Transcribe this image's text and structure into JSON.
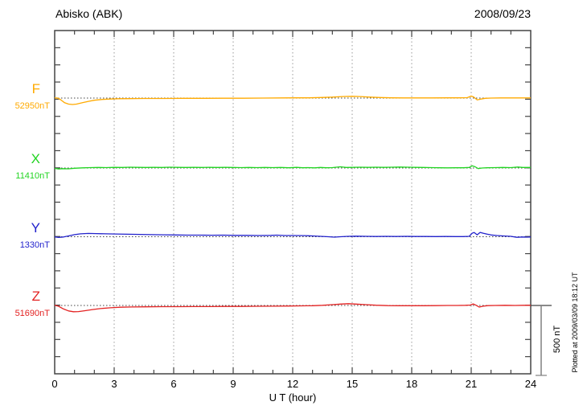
{
  "chart_data": {
    "type": "line",
    "title": "Abisko (ABK)",
    "date": "2008/09/23",
    "xlabel": "U T (hour)",
    "x_range": [
      0,
      24
    ],
    "x_tick_hours": [
      0,
      3,
      6,
      9,
      12,
      15,
      18,
      21,
      24
    ],
    "x_tick_labels": [
      "0",
      "3",
      "6",
      "9",
      "12",
      "15",
      "18",
      "21",
      "24"
    ],
    "x_minor_tick_step_hours": 1,
    "grid": {
      "vertical_dotted_at_hours": [
        3,
        6,
        9,
        12,
        15,
        18,
        21
      ],
      "horizontal_dotted_baselines": true
    },
    "legend_position": "left-of-traces",
    "scale": {
      "label": "500 nT",
      "nT": 500
    },
    "plotted_note": "Plotted at 2009/03/09 18:12 UT",
    "frame_color": "#444444",
    "grid_color": "#999999",
    "baseline_color": "#444444",
    "scalebar_color": "#808080",
    "series": [
      {
        "name": "F",
        "baseline_label": "52950nT",
        "baseline_nT": 52950,
        "color": "#FFAA00",
        "points_hour_dnT": [
          [
            0,
            2
          ],
          [
            0.15,
            0
          ],
          [
            0.3,
            -12
          ],
          [
            0.5,
            -34
          ],
          [
            0.7,
            -44
          ],
          [
            0.9,
            -47
          ],
          [
            1.1,
            -44
          ],
          [
            1.4,
            -34
          ],
          [
            1.7,
            -24
          ],
          [
            2.0,
            -16
          ],
          [
            2.4,
            -10
          ],
          [
            2.8,
            -7
          ],
          [
            3.2,
            -5
          ],
          [
            3.8,
            -4
          ],
          [
            4.5,
            -3
          ],
          [
            5.5,
            -3
          ],
          [
            6.5,
            -2
          ],
          [
            7.5,
            -2
          ],
          [
            8.5,
            -1
          ],
          [
            9.5,
            -1
          ],
          [
            10.5,
            0
          ],
          [
            11.5,
            1
          ],
          [
            12.2,
            2
          ],
          [
            12.8,
            2
          ],
          [
            13.4,
            4
          ],
          [
            14.0,
            7
          ],
          [
            14.5,
            11
          ],
          [
            15.0,
            13
          ],
          [
            15.4,
            11
          ],
          [
            15.9,
            7
          ],
          [
            16.4,
            4
          ],
          [
            17.0,
            2
          ],
          [
            17.6,
            1
          ],
          [
            18.2,
            1
          ],
          [
            19.0,
            1
          ],
          [
            19.8,
            2
          ],
          [
            20.4,
            2
          ],
          [
            20.8,
            3
          ],
          [
            21.0,
            15
          ],
          [
            21.12,
            8
          ],
          [
            21.3,
            -13
          ],
          [
            21.5,
            -7
          ],
          [
            21.7,
            -2
          ],
          [
            22.0,
            0
          ],
          [
            22.5,
            1
          ],
          [
            23.0,
            1
          ],
          [
            23.5,
            1
          ],
          [
            24,
            1
          ]
        ]
      },
      {
        "name": "X",
        "baseline_label": "11410nT",
        "baseline_nT": 11410,
        "color": "#22D422",
        "points_hour_dnT": [
          [
            0,
            -3
          ],
          [
            0.2,
            -7
          ],
          [
            0.4,
            -5
          ],
          [
            0.7,
            -6
          ],
          [
            1.0,
            -2
          ],
          [
            1.4,
            1
          ],
          [
            1.8,
            3
          ],
          [
            2.2,
            4
          ],
          [
            2.6,
            3
          ],
          [
            3.0,
            5
          ],
          [
            3.4,
            4
          ],
          [
            3.8,
            6
          ],
          [
            4.2,
            5
          ],
          [
            4.6,
            4
          ],
          [
            5.0,
            5
          ],
          [
            5.4,
            4
          ],
          [
            5.8,
            6
          ],
          [
            6.2,
            5
          ],
          [
            6.6,
            4
          ],
          [
            7.0,
            5
          ],
          [
            7.4,
            4
          ],
          [
            7.8,
            5
          ],
          [
            8.2,
            4
          ],
          [
            8.6,
            5
          ],
          [
            9.0,
            4
          ],
          [
            9.4,
            3
          ],
          [
            9.8,
            4
          ],
          [
            10.2,
            3
          ],
          [
            10.6,
            4
          ],
          [
            11.0,
            3
          ],
          [
            11.4,
            4
          ],
          [
            11.8,
            2
          ],
          [
            12.2,
            5
          ],
          [
            12.5,
            2
          ],
          [
            12.8,
            3
          ],
          [
            13.1,
            1
          ],
          [
            13.4,
            4
          ],
          [
            13.7,
            2
          ],
          [
            14.0,
            3
          ],
          [
            14.4,
            9
          ],
          [
            14.7,
            4
          ],
          [
            15.0,
            5
          ],
          [
            15.4,
            6
          ],
          [
            15.8,
            5
          ],
          [
            16.2,
            6
          ],
          [
            16.6,
            5
          ],
          [
            17.0,
            6
          ],
          [
            17.4,
            7
          ],
          [
            17.8,
            6
          ],
          [
            18.2,
            5
          ],
          [
            18.6,
            4
          ],
          [
            19.0,
            3
          ],
          [
            19.4,
            2
          ],
          [
            19.8,
            1
          ],
          [
            20.2,
            2
          ],
          [
            20.6,
            2
          ],
          [
            20.9,
            4
          ],
          [
            21.05,
            16
          ],
          [
            21.2,
            9
          ],
          [
            21.35,
            -4
          ],
          [
            21.55,
            0
          ],
          [
            21.8,
            2
          ],
          [
            22.2,
            3
          ],
          [
            22.6,
            4
          ],
          [
            23.0,
            3
          ],
          [
            23.35,
            7
          ],
          [
            23.6,
            4
          ],
          [
            24,
            4
          ]
        ]
      },
      {
        "name": "Y",
        "baseline_label": "1330nT",
        "baseline_nT": 1330,
        "color": "#2222CC",
        "points_hour_dnT": [
          [
            0,
            -1
          ],
          [
            0.2,
            -5
          ],
          [
            0.45,
            -2
          ],
          [
            0.7,
            6
          ],
          [
            1.0,
            15
          ],
          [
            1.3,
            21
          ],
          [
            1.7,
            24
          ],
          [
            2.1,
            23
          ],
          [
            2.6,
            21
          ],
          [
            3.1,
            20
          ],
          [
            3.7,
            18
          ],
          [
            4.3,
            17
          ],
          [
            4.9,
            15
          ],
          [
            5.5,
            14
          ],
          [
            6.1,
            13
          ],
          [
            6.7,
            12
          ],
          [
            7.3,
            12
          ],
          [
            7.9,
            11
          ],
          [
            8.5,
            12
          ],
          [
            9.1,
            10
          ],
          [
            9.7,
            10
          ],
          [
            10.3,
            9
          ],
          [
            10.9,
            10
          ],
          [
            11.2,
            12
          ],
          [
            11.6,
            9
          ],
          [
            12.1,
            9
          ],
          [
            12.6,
            8
          ],
          [
            13.0,
            6
          ],
          [
            13.4,
            3
          ],
          [
            13.8,
            0
          ],
          [
            14.1,
            -3
          ],
          [
            14.4,
            0
          ],
          [
            14.8,
            3
          ],
          [
            15.2,
            4
          ],
          [
            15.7,
            3
          ],
          [
            16.2,
            2
          ],
          [
            16.7,
            3
          ],
          [
            17.2,
            2
          ],
          [
            17.7,
            3
          ],
          [
            18.2,
            2
          ],
          [
            18.7,
            2
          ],
          [
            19.2,
            1
          ],
          [
            19.7,
            2
          ],
          [
            20.2,
            1
          ],
          [
            20.6,
            1
          ],
          [
            20.9,
            3
          ],
          [
            21.05,
            26
          ],
          [
            21.15,
            31
          ],
          [
            21.3,
            14
          ],
          [
            21.45,
            32
          ],
          [
            21.6,
            26
          ],
          [
            21.8,
            19
          ],
          [
            22.0,
            13
          ],
          [
            22.3,
            9
          ],
          [
            22.6,
            6
          ],
          [
            23.0,
            3
          ],
          [
            23.3,
            -4
          ],
          [
            23.6,
            -2
          ],
          [
            23.8,
            -3
          ],
          [
            24,
            -2
          ]
        ]
      },
      {
        "name": "Z",
        "baseline_label": "51690nT",
        "baseline_nT": 51690,
        "color": "#E32222",
        "points_hour_dnT": [
          [
            0,
            1
          ],
          [
            0.2,
            -6
          ],
          [
            0.45,
            -26
          ],
          [
            0.7,
            -40
          ],
          [
            0.95,
            -46
          ],
          [
            1.2,
            -45
          ],
          [
            1.5,
            -39
          ],
          [
            1.9,
            -30
          ],
          [
            2.3,
            -23
          ],
          [
            2.8,
            -17
          ],
          [
            3.3,
            -13
          ],
          [
            3.9,
            -11
          ],
          [
            4.6,
            -10
          ],
          [
            5.4,
            -9
          ],
          [
            6.2,
            -9
          ],
          [
            7.0,
            -8
          ],
          [
            7.8,
            -8
          ],
          [
            8.6,
            -7
          ],
          [
            9.4,
            -7
          ],
          [
            10.2,
            -6
          ],
          [
            11.0,
            -5
          ],
          [
            11.8,
            -4
          ],
          [
            12.4,
            -3
          ],
          [
            13.0,
            -2
          ],
          [
            13.5,
            1
          ],
          [
            14.0,
            6
          ],
          [
            14.4,
            10
          ],
          [
            14.8,
            13
          ],
          [
            15.2,
            10
          ],
          [
            15.7,
            6
          ],
          [
            16.2,
            2
          ],
          [
            16.8,
            -1
          ],
          [
            17.4,
            -2
          ],
          [
            18.0,
            -2
          ],
          [
            18.6,
            -2
          ],
          [
            19.2,
            -1
          ],
          [
            19.8,
            0
          ],
          [
            20.3,
            0
          ],
          [
            20.7,
            1
          ],
          [
            20.95,
            3
          ],
          [
            21.1,
            11
          ],
          [
            21.25,
            1
          ],
          [
            21.4,
            -12
          ],
          [
            21.6,
            -5
          ],
          [
            21.85,
            -1
          ],
          [
            22.2,
            0
          ],
          [
            22.7,
            1
          ],
          [
            23.2,
            0
          ],
          [
            23.6,
            1
          ],
          [
            24,
            1
          ]
        ]
      }
    ]
  }
}
